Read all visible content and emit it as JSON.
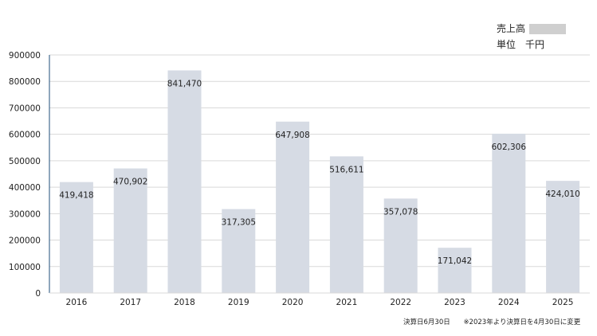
{
  "legend": {
    "series_label": "売上高",
    "unit_label": "単位",
    "unit_value": "千円",
    "swatch_color": "#cfcfcf"
  },
  "footnote": {
    "fiscal_end": "決算日6月30日",
    "change_note": "※2023年より決算日を4月30日に変更"
  },
  "colors": {
    "bar": "#d6dbe4",
    "grid": "#d9d9d9",
    "axis": "#1f4e79"
  },
  "chart_data": {
    "type": "bar",
    "categories": [
      "2016",
      "2017",
      "2018",
      "2019",
      "2020",
      "2021",
      "2022",
      "2023",
      "2024",
      "2025"
    ],
    "series": [
      {
        "name": "売上高",
        "values": [
          419418,
          470902,
          841470,
          317305,
          647908,
          516611,
          357078,
          171042,
          602306,
          424010
        ],
        "data_labels": [
          "419,418",
          "470,902",
          "841,470",
          "317,305",
          "647,908",
          "516,611",
          "357,078",
          "171,042",
          "602,306",
          "424,010"
        ]
      }
    ],
    "ylim": [
      0,
      900000
    ],
    "yticks": [
      0,
      100000,
      200000,
      300000,
      400000,
      500000,
      600000,
      700000,
      800000,
      900000
    ],
    "ytick_labels": [
      "0",
      "100000",
      "200000",
      "300000",
      "400000",
      "500000",
      "600000",
      "700000",
      "800000",
      "900000"
    ],
    "grid": true,
    "legend_position": "top-right"
  }
}
